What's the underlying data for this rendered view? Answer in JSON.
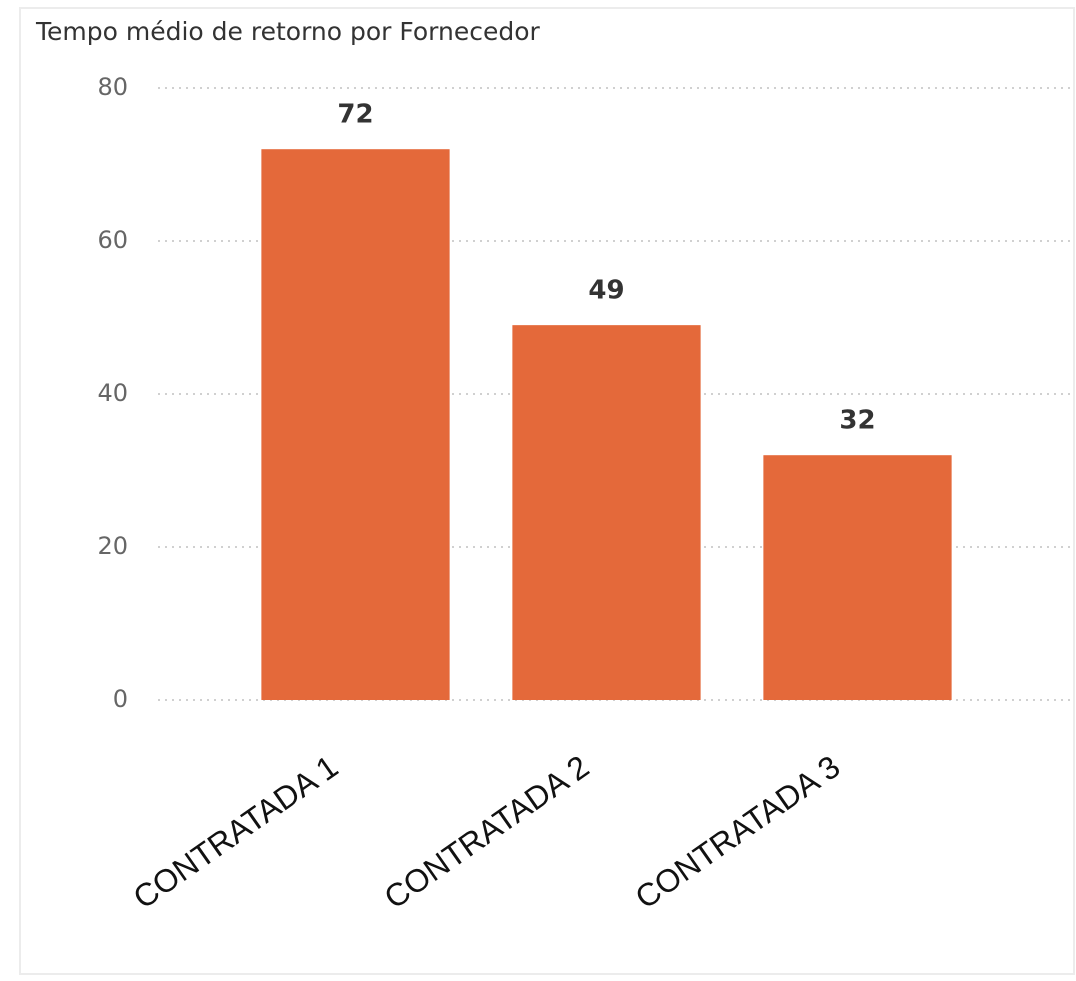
{
  "chart_data": {
    "type": "bar",
    "title": "Tempo médio de retorno por Fornecedor",
    "categories": [
      "CONTRATADA 1",
      "CONTRATADA 2",
      "CONTRATADA 3"
    ],
    "values": [
      72,
      49,
      32
    ],
    "color": "#e4693a",
    "ylim": [
      0,
      80
    ],
    "yticks": [
      0,
      20,
      40,
      60,
      80
    ],
    "grid": true
  }
}
